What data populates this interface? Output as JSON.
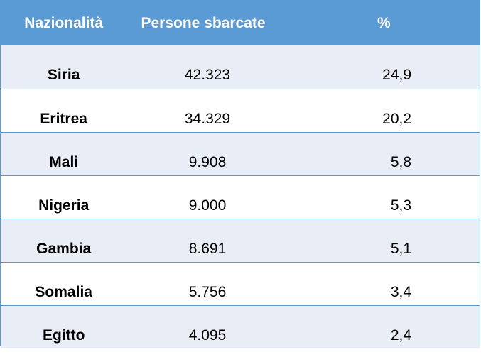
{
  "headers": [
    "Nazionalità",
    "Persone sbarcate",
    "%"
  ],
  "rows": [
    {
      "nationality": "Siria",
      "people": "42.323",
      "percent": "24,9"
    },
    {
      "nationality": "Eritrea",
      "people": "34.329",
      "percent": "20,2"
    },
    {
      "nationality": "Mali",
      "people": "9.908",
      "percent": "5,8"
    },
    {
      "nationality": "Nigeria",
      "people": "9.000",
      "percent": "5,3"
    },
    {
      "nationality": "Gambia",
      "people": "8.691",
      "percent": "5,1"
    },
    {
      "nationality": "Somalia",
      "people": "5.756",
      "percent": "3,4"
    },
    {
      "nationality": "Egitto",
      "people": "4.095",
      "percent": "2,4"
    }
  ],
  "colors": {
    "header_bg": "#5b9bd5",
    "shaded_row": "#e9edf5",
    "border": "#5b9bd5"
  }
}
